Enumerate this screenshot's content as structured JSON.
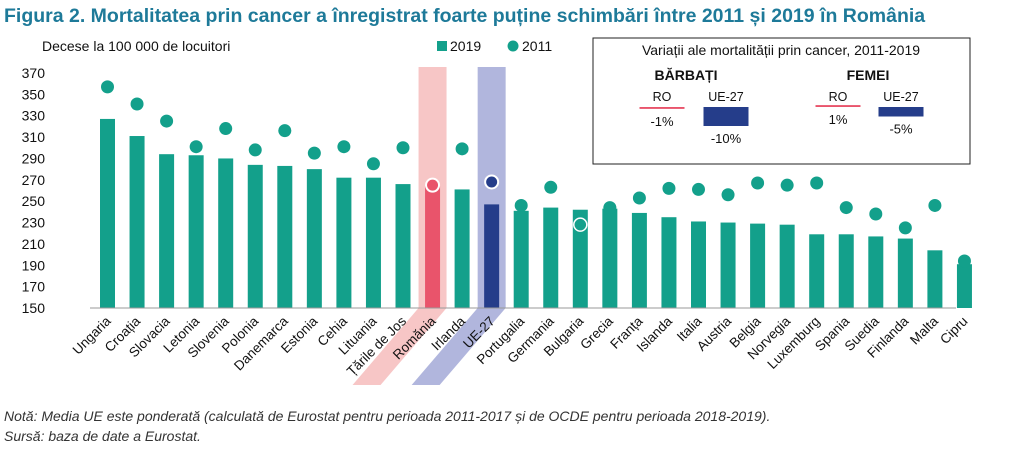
{
  "title": "Figura 2. Mortalitatea prin cancer a înregistrat foarte puține schimbări între 2011 și 2019 în România",
  "colors": {
    "title": "#1e7a99",
    "bar": "#13a08b",
    "dot": "#13a08b",
    "romania_bar": "#e9546b",
    "romania_band": "#f6c0c0",
    "eu_bar": "#253d8a",
    "eu_band": "#a9aed9"
  },
  "chart_data": [
    {
      "type": "bar",
      "ylabel": "Decese la 100 000 de locuitori",
      "ylim": [
        150,
        370
      ],
      "yticks": [
        150,
        170,
        190,
        210,
        230,
        250,
        270,
        290,
        310,
        330,
        350,
        370
      ],
      "legend": {
        "position": "top-right",
        "items": [
          "2019",
          "2011"
        ]
      },
      "grid": false,
      "highlight": {
        "Romănia": "romania",
        "UE-27": "eu"
      },
      "categories": [
        "Ungaria",
        "Croația",
        "Slovacia",
        "Letonia",
        "Slovenia",
        "Polonia",
        "Danemarca",
        "Estonia",
        "Cehia",
        "Lituania",
        "Țările de Jos",
        "Romănia",
        "Irlanda",
        "UE-27",
        "Portugalia",
        "Germania",
        "Bulgaria",
        "Grecia",
        "Franța",
        "Islanda",
        "Italia",
        "Austria",
        "Belgia",
        "Norvegia",
        "Luxemburg",
        "Spania",
        "Suedia",
        "Finlanda",
        "Malta",
        "Cipru"
      ],
      "series": [
        {
          "name": "2019",
          "kind": "bar",
          "values": [
            327,
            311,
            294,
            293,
            290,
            284,
            283,
            280,
            272,
            272,
            266,
            264,
            261,
            247,
            241,
            244,
            242,
            243,
            239,
            235,
            231,
            230,
            229,
            228,
            219,
            219,
            217,
            215,
            204,
            191
          ]
        },
        {
          "name": "2011",
          "kind": "dot",
          "values": [
            357,
            341,
            325,
            301,
            318,
            298,
            316,
            295,
            301,
            285,
            300,
            265,
            299,
            268,
            246,
            263,
            228,
            244,
            253,
            262,
            261,
            256,
            267,
            265,
            267,
            244,
            238,
            225,
            246,
            194
          ]
        }
      ]
    },
    {
      "type": "bar",
      "title": "Variații ale mortalității prin cancer, 2011-2019",
      "groups": [
        {
          "name": "BĂRBAȚI",
          "categories": [
            "RO",
            "UE-27"
          ],
          "values": [
            -1,
            -10
          ],
          "labels": [
            "-1%",
            "-10%"
          ]
        },
        {
          "name": "FEMEI",
          "categories": [
            "RO",
            "UE-27"
          ],
          "values": [
            1,
            -5
          ],
          "labels": [
            "1%",
            "-5%"
          ]
        }
      ]
    }
  ],
  "notes": {
    "line1": "Notă: Media UE este ponderată (calculată de Eurostat pentru perioada 2011-2017 și de OCDE pentru perioada 2018-2019).",
    "line2": "Sursă: baza de date a Eurostat."
  }
}
